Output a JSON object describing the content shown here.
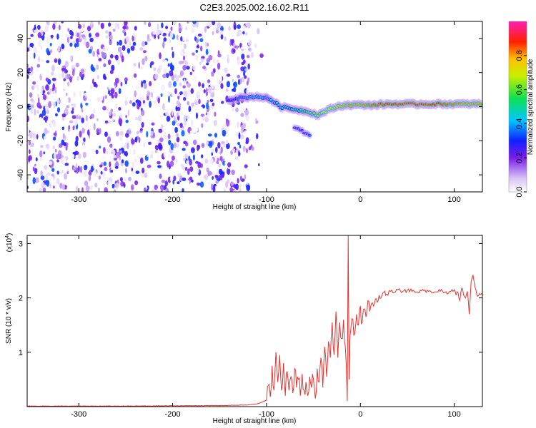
{
  "title": "C2E3.2025.002.16.02.R11",
  "colors": {
    "snr_line": "#e8322e",
    "axis": "#000000",
    "background": "#ffffff"
  },
  "chart_data": [
    {
      "type": "heatmap",
      "xlabel": "Height of straight line (km)",
      "ylabel": "Frequency (Hz)",
      "xlim": [
        -355,
        130
      ],
      "ylim": [
        -50,
        50
      ],
      "xticks": [
        -300,
        -200,
        -100,
        0,
        100
      ],
      "yticks": [
        -40,
        -20,
        0,
        20,
        40
      ],
      "grid": false,
      "colorbar": {
        "label": "Normalized spectral amplitude",
        "range": [
          0,
          1
        ],
        "ticks": [
          "0.0",
          "0.2",
          "0.4",
          "0.6",
          "0.8"
        ],
        "colormap": "rainbow (white-purple-blue-cyan-green-yellow-red-magenta)"
      },
      "noise_region": {
        "x": [
          -355,
          -115
        ],
        "y": [
          -50,
          50
        ],
        "amplitude": [
          0.0,
          0.35
        ]
      },
      "signal_ridge": [
        {
          "x": -140,
          "freq": 4,
          "amp": 0.3
        },
        {
          "x": -130,
          "freq": 5,
          "amp": 0.35
        },
        {
          "x": -110,
          "freq": 6,
          "amp": 0.45
        },
        {
          "x": -100,
          "freq": 5,
          "amp": 0.4
        },
        {
          "x": -95,
          "freq": 4,
          "amp": 0.45
        },
        {
          "x": -85,
          "freq": 0,
          "amp": 0.5
        },
        {
          "x": -75,
          "freq": -1,
          "amp": 0.5
        },
        {
          "x": -65,
          "freq": -2,
          "amp": 0.55
        },
        {
          "x": -55,
          "freq": -3,
          "amp": 0.6
        },
        {
          "x": -45,
          "freq": -5,
          "amp": 0.65
        },
        {
          "x": -35,
          "freq": -2,
          "amp": 0.7
        },
        {
          "x": -25,
          "freq": 0,
          "amp": 0.75
        },
        {
          "x": -15,
          "freq": 1,
          "amp": 0.8
        },
        {
          "x": 0,
          "freq": 1,
          "amp": 0.8
        },
        {
          "x": 15,
          "freq": 1,
          "amp": 0.85
        },
        {
          "x": 30,
          "freq": 1.5,
          "amp": 0.9
        },
        {
          "x": 50,
          "freq": 1.5,
          "amp": 0.95
        },
        {
          "x": 70,
          "freq": 1.5,
          "amp": 0.95
        },
        {
          "x": 90,
          "freq": 1.5,
          "amp": 0.85
        },
        {
          "x": 110,
          "freq": 1.5,
          "amp": 0.8
        },
        {
          "x": 130,
          "freq": 1.5,
          "amp": 0.8
        }
      ],
      "secondary_branch": [
        {
          "x": -70,
          "freq": -12,
          "amp": 0.35
        },
        {
          "x": -60,
          "freq": -15,
          "amp": 0.35
        },
        {
          "x": -52,
          "freq": -17,
          "amp": 0.4
        }
      ]
    },
    {
      "type": "line",
      "xlabel": "Height of straight line (km)",
      "ylabel": "SNR (10 * v/v)",
      "yscale_label": "(x10",
      "yscale_exp": "4",
      "yscale_close": ")",
      "xlim": [
        -355,
        130
      ],
      "ylim": [
        0,
        3.15
      ],
      "xticks": [
        -300,
        -200,
        -100,
        0,
        100
      ],
      "yticks": [
        1,
        2,
        3
      ],
      "grid": false,
      "series": [
        {
          "x": [
            -355,
            -250,
            -150,
            -120,
            -110,
            -105,
            -100,
            -98,
            -96,
            -94,
            -92,
            -90,
            -88,
            -86,
            -84,
            -82,
            -80,
            -78,
            -76,
            -74,
            -72,
            -70,
            -68,
            -66,
            -64,
            -62,
            -60,
            -58,
            -56,
            -54,
            -52,
            -50,
            -48,
            -46,
            -44,
            -42,
            -40,
            -38,
            -36,
            -34,
            -32,
            -30,
            -28,
            -26,
            -24,
            -22,
            -20,
            -18,
            -16,
            -14,
            -13,
            -12,
            -11,
            -10,
            -8,
            -6,
            -4,
            -2,
            0,
            2,
            4,
            6,
            8,
            10,
            12,
            14,
            16,
            18,
            20,
            22,
            25,
            28,
            32,
            36,
            40,
            45,
            50,
            55,
            60,
            65,
            70,
            75,
            80,
            85,
            90,
            95,
            100,
            102,
            104,
            106,
            108,
            110,
            112,
            114,
            116,
            118,
            120,
            122,
            124,
            127,
            130
          ],
          "values": [
            0.01,
            0.01,
            0.02,
            0.03,
            0.05,
            0.08,
            0.12,
            0.4,
            0.18,
            0.75,
            0.3,
            1.0,
            0.45,
            0.95,
            0.3,
            0.8,
            0.2,
            0.65,
            0.3,
            0.55,
            0.25,
            0.7,
            0.35,
            0.5,
            0.2,
            0.6,
            0.3,
            0.45,
            0.2,
            0.55,
            0.35,
            0.5,
            0.15,
            0.7,
            0.45,
            0.9,
            0.35,
            1.1,
            0.55,
            1.2,
            0.9,
            1.55,
            0.95,
            1.75,
            0.9,
            1.55,
            1.25,
            1.6,
            1.1,
            0.1,
            3.15,
            0.5,
            1.3,
            1.45,
            1.6,
            1.35,
            1.7,
            1.5,
            1.85,
            1.55,
            1.8,
            1.65,
            1.95,
            1.75,
            1.9,
            1.85,
            1.98,
            1.92,
            2.05,
            2.0,
            2.1,
            2.07,
            2.12,
            2.1,
            2.15,
            2.12,
            2.14,
            2.12,
            2.11,
            2.13,
            2.1,
            2.12,
            2.11,
            2.12,
            2.1,
            2.12,
            2.15,
            2.05,
            2.1,
            1.95,
            2.18,
            2.05,
            2.0,
            2.12,
            1.7,
            2.3,
            2.42,
            2.2,
            2.06,
            2.08,
            2.05
          ]
        }
      ]
    }
  ]
}
